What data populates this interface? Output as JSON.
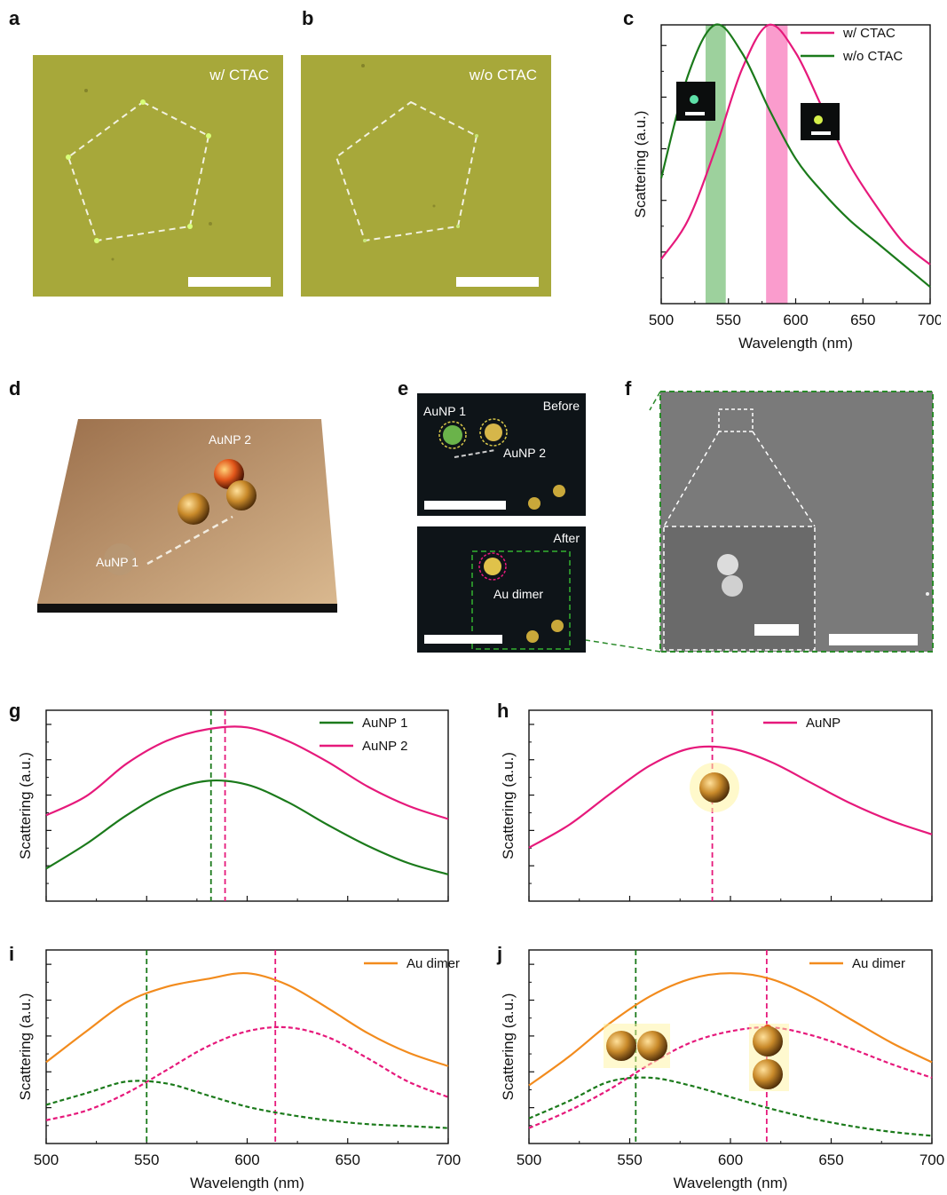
{
  "panel_labels": {
    "a": "a",
    "b": "b",
    "c": "c",
    "d": "d",
    "e": "e",
    "f": "f",
    "g": "g",
    "h": "h",
    "i": "i",
    "j": "j"
  },
  "panel_a": {
    "caption": "w/ CTAC"
  },
  "panel_b": {
    "caption": "w/o CTAC"
  },
  "panel_d": {
    "label1": "AuNP 2",
    "label2": "AuNP 1"
  },
  "panel_e": {
    "before": "Before",
    "after": "After",
    "aunp1": "AuNP 1",
    "aunp2": "AuNP 2",
    "dimer": "Au dimer"
  },
  "colors": {
    "green": "#1b7a1b",
    "magenta": "#e6197b",
    "orange": "#f28b1d",
    "field_a": "#a7a83a",
    "dark_field": "#0e1418",
    "sem": "#757575"
  },
  "chart_data": [
    {
      "id": "c",
      "type": "line",
      "xlabel": "Wavelength (nm)",
      "ylabel": "Scattering (a.u.)",
      "xlim": [
        500,
        700
      ],
      "xticks": [
        500,
        550,
        600,
        650,
        700
      ],
      "legend": "top-right",
      "series": [
        {
          "name": "w/ CTAC",
          "color": "#e6197b",
          "x": [
            500,
            520,
            540,
            560,
            580,
            600,
            620,
            640,
            660,
            680,
            700
          ],
          "y": [
            0.16,
            0.3,
            0.55,
            0.84,
            1.0,
            0.9,
            0.7,
            0.5,
            0.35,
            0.22,
            0.14
          ]
        },
        {
          "name": "w/o CTAC",
          "color": "#1b7a1b",
          "x": [
            500,
            520,
            540,
            560,
            580,
            600,
            620,
            640,
            660,
            680,
            700
          ],
          "y": [
            0.45,
            0.82,
            1.0,
            0.9,
            0.7,
            0.52,
            0.4,
            0.3,
            0.22,
            0.14,
            0.06
          ]
        }
      ],
      "bands": [
        {
          "from": 533,
          "to": 548,
          "color": "#8cc98c"
        },
        {
          "from": 578,
          "to": 594,
          "color": "#f98bc4"
        }
      ]
    },
    {
      "id": "g",
      "type": "line",
      "ylabel": "Scattering (a.u.)",
      "xlim": [
        500,
        700
      ],
      "legend": "top-right",
      "series": [
        {
          "name": "AuNP 1",
          "color": "#1b7a1b",
          "x": [
            500,
            520,
            540,
            560,
            580,
            600,
            620,
            640,
            660,
            680,
            700
          ],
          "y": [
            0.17,
            0.3,
            0.45,
            0.57,
            0.63,
            0.61,
            0.52,
            0.4,
            0.29,
            0.2,
            0.14
          ]
        },
        {
          "name": "AuNP 2",
          "color": "#e6197b",
          "x": [
            500,
            520,
            540,
            560,
            580,
            600,
            620,
            640,
            660,
            680,
            700
          ],
          "y": [
            0.45,
            0.55,
            0.72,
            0.84,
            0.9,
            0.91,
            0.84,
            0.73,
            0.6,
            0.5,
            0.43
          ]
        }
      ],
      "vlines": [
        {
          "x": 582,
          "color": "#1b7a1b"
        },
        {
          "x": 589,
          "color": "#e6197b"
        }
      ]
    },
    {
      "id": "h",
      "type": "line",
      "ylabel": "Scattering (a.u.)",
      "xlim": [
        500,
        700
      ],
      "legend": "top-right",
      "series": [
        {
          "name": "AuNP",
          "color": "#e6197b",
          "x": [
            500,
            520,
            540,
            560,
            580,
            600,
            620,
            640,
            660,
            680,
            700
          ],
          "y": [
            0.28,
            0.4,
            0.56,
            0.71,
            0.8,
            0.8,
            0.73,
            0.62,
            0.51,
            0.42,
            0.35
          ]
        }
      ],
      "vlines": [
        {
          "x": 591,
          "color": "#e6197b"
        }
      ]
    },
    {
      "id": "i",
      "type": "line",
      "xlabel": "Wavelength (nm)",
      "ylabel": "Scattering (a.u.)",
      "xlim": [
        500,
        700
      ],
      "xticks": [
        500,
        550,
        600,
        650,
        700
      ],
      "legend": "top-right",
      "series": [
        {
          "name": "Au dimer",
          "color": "#f28b1d",
          "x": [
            500,
            520,
            540,
            560,
            580,
            600,
            620,
            640,
            660,
            680,
            700
          ],
          "y": [
            0.42,
            0.58,
            0.73,
            0.81,
            0.85,
            0.88,
            0.82,
            0.7,
            0.57,
            0.47,
            0.4
          ]
        },
        {
          "name": "",
          "color": "#e6197b",
          "dashed": true,
          "x": [
            500,
            520,
            540,
            560,
            580,
            600,
            620,
            640,
            660,
            680,
            700
          ],
          "y": [
            0.12,
            0.17,
            0.26,
            0.38,
            0.5,
            0.58,
            0.6,
            0.55,
            0.44,
            0.32,
            0.24
          ]
        },
        {
          "name": "",
          "color": "#1b7a1b",
          "dashed": true,
          "x": [
            500,
            520,
            540,
            560,
            580,
            600,
            620,
            640,
            660,
            680,
            700
          ],
          "y": [
            0.2,
            0.26,
            0.32,
            0.31,
            0.25,
            0.19,
            0.15,
            0.12,
            0.1,
            0.09,
            0.08
          ]
        }
      ],
      "vlines": [
        {
          "x": 550,
          "color": "#1b7a1b"
        },
        {
          "x": 614,
          "color": "#e6197b"
        }
      ]
    },
    {
      "id": "j",
      "type": "line",
      "xlabel": "Wavelength (nm)",
      "ylabel": "Scattering (a.u.)",
      "xlim": [
        500,
        700
      ],
      "xticks": [
        500,
        550,
        600,
        650,
        700
      ],
      "legend": "top-right",
      "series": [
        {
          "name": "Au dimer",
          "color": "#f28b1d",
          "x": [
            500,
            520,
            540,
            560,
            580,
            600,
            620,
            640,
            660,
            680,
            700
          ],
          "y": [
            0.3,
            0.45,
            0.62,
            0.76,
            0.85,
            0.88,
            0.85,
            0.76,
            0.64,
            0.52,
            0.42
          ]
        },
        {
          "name": "",
          "color": "#e6197b",
          "dashed": true,
          "x": [
            500,
            520,
            540,
            560,
            580,
            600,
            620,
            640,
            660,
            680,
            700
          ],
          "y": [
            0.08,
            0.17,
            0.28,
            0.41,
            0.52,
            0.58,
            0.6,
            0.56,
            0.49,
            0.41,
            0.34
          ]
        },
        {
          "name": "",
          "color": "#1b7a1b",
          "dashed": true,
          "x": [
            500,
            520,
            540,
            560,
            580,
            600,
            620,
            640,
            660,
            680,
            700
          ],
          "y": [
            0.13,
            0.22,
            0.32,
            0.34,
            0.3,
            0.24,
            0.18,
            0.13,
            0.09,
            0.06,
            0.04
          ]
        }
      ],
      "vlines": [
        {
          "x": 553,
          "color": "#1b7a1b"
        },
        {
          "x": 618,
          "color": "#e6197b"
        }
      ]
    }
  ]
}
